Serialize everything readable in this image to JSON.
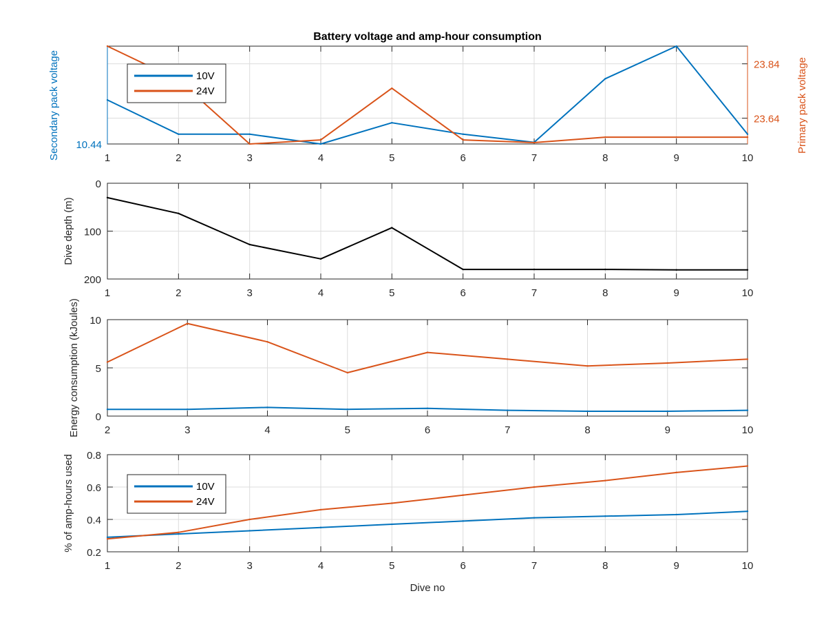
{
  "figure": {
    "title": "Battery voltage and amp-hour consumption",
    "colors": {
      "blue": "#0072BD",
      "orange": "#D95319",
      "black": "#000000"
    }
  },
  "chart_data": [
    {
      "type": "line",
      "title": "Battery voltage and amp-hour consumption",
      "xlabel": "",
      "x": [
        1,
        2,
        3,
        4,
        5,
        6,
        7,
        8,
        9,
        10
      ],
      "xlim": [
        1,
        10
      ],
      "xticks": [
        "1",
        "2",
        "3",
        "4",
        "5",
        "6",
        "7",
        "8",
        "9",
        "10"
      ],
      "yleft": {
        "label": "Secondary pack voltage",
        "ylim": [
          10.44,
          10.5
        ],
        "ticks": [
          10.44
        ],
        "tick_labels": [
          "10.44"
        ],
        "color": "#0072BD"
      },
      "yright": {
        "label": "Primary pack voltage",
        "ylim": [
          23.545,
          23.905
        ],
        "ticks": [
          23.64,
          23.84
        ],
        "tick_labels": [
          "23.64",
          "23.84"
        ],
        "color": "#D95319"
      },
      "grid": true,
      "legend_position": "top-left",
      "series": [
        {
          "name": "10V",
          "axis": "left",
          "color": "#0072BD",
          "values": [
            10.467,
            10.446,
            10.446,
            10.44,
            10.453,
            10.446,
            10.441,
            10.48,
            10.5,
            10.446
          ]
        },
        {
          "name": "24V",
          "axis": "right",
          "color": "#D95319",
          "values": [
            23.905,
            23.78,
            23.545,
            23.56,
            23.75,
            23.56,
            23.55,
            23.57,
            23.57,
            23.57
          ]
        }
      ]
    },
    {
      "type": "line",
      "xlabel": "",
      "ylabel": "Dive depth (m)",
      "x": [
        1,
        2,
        3,
        4,
        5,
        6,
        7,
        8,
        9,
        10
      ],
      "xlim": [
        1,
        10
      ],
      "xticks": [
        "1",
        "2",
        "3",
        "4",
        "5",
        "6",
        "7",
        "8",
        "9",
        "10"
      ],
      "ylim": [
        0,
        200
      ],
      "y_reversed": true,
      "yticks": [
        0,
        100,
        200
      ],
      "ytick_labels": [
        "0",
        "100",
        "200"
      ],
      "grid": true,
      "series": [
        {
          "color": "#000000",
          "values": [
            30,
            63,
            128,
            158,
            93,
            180,
            180,
            180,
            181,
            181
          ]
        }
      ]
    },
    {
      "type": "line",
      "xlabel": "",
      "ylabel": "Energy consumption (kJoules)",
      "x": [
        2,
        3,
        4,
        5,
        6,
        7,
        8,
        9,
        10
      ],
      "xlim": [
        2,
        10
      ],
      "xticks": [
        "2",
        "3",
        "4",
        "5",
        "6",
        "7",
        "8",
        "9",
        "10"
      ],
      "ylim": [
        0,
        10
      ],
      "yticks": [
        0,
        5,
        10
      ],
      "ytick_labels": [
        "0",
        "5",
        "10"
      ],
      "grid": true,
      "series": [
        {
          "color": "#D95319",
          "values": [
            5.6,
            9.6,
            7.7,
            4.5,
            6.6,
            5.9,
            5.2,
            5.5,
            5.9
          ]
        },
        {
          "color": "#0072BD",
          "values": [
            0.7,
            0.7,
            0.9,
            0.7,
            0.8,
            0.6,
            0.5,
            0.5,
            0.6
          ]
        }
      ]
    },
    {
      "type": "line",
      "xlabel": "Dive no",
      "ylabel": "% of amp-hours used",
      "x": [
        1,
        2,
        3,
        4,
        5,
        6,
        7,
        8,
        9,
        10
      ],
      "xlim": [
        1,
        10
      ],
      "xticks": [
        "1",
        "2",
        "3",
        "4",
        "5",
        "6",
        "7",
        "8",
        "9",
        "10"
      ],
      "ylim": [
        0.2,
        0.8
      ],
      "yticks": [
        0.2,
        0.4,
        0.6,
        0.8
      ],
      "ytick_labels": [
        "0.2",
        "0.4",
        "0.6",
        "0.8"
      ],
      "grid": true,
      "legend_position": "top-left",
      "series": [
        {
          "name": "10V",
          "color": "#0072BD",
          "values": [
            0.29,
            0.31,
            0.33,
            0.35,
            0.37,
            0.39,
            0.41,
            0.42,
            0.43,
            0.45
          ]
        },
        {
          "name": "24V",
          "color": "#D95319",
          "values": [
            0.28,
            0.32,
            0.4,
            0.46,
            0.5,
            0.55,
            0.6,
            0.64,
            0.69,
            0.73
          ]
        }
      ]
    }
  ]
}
